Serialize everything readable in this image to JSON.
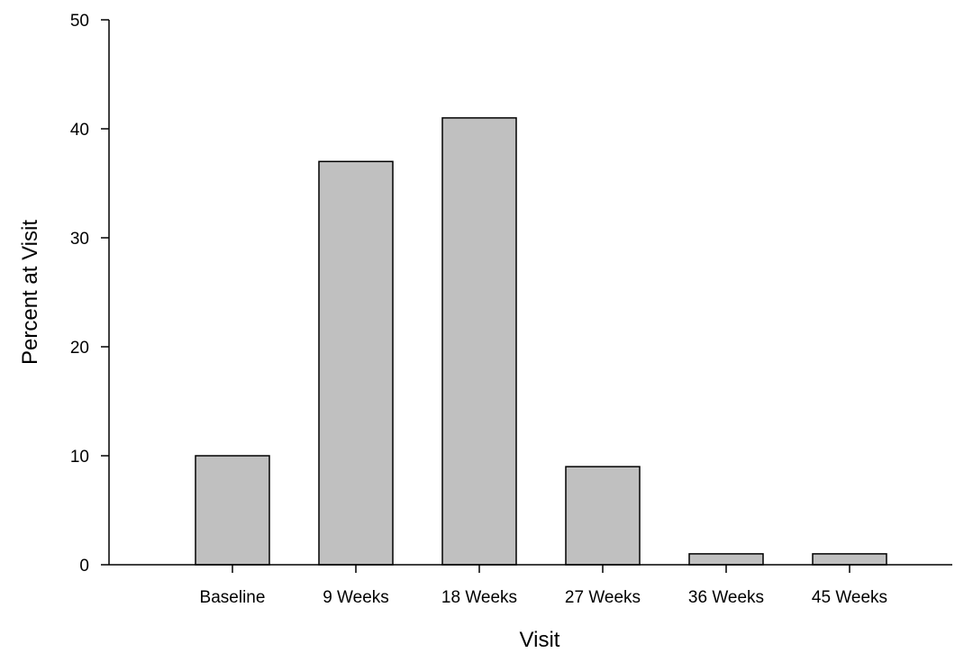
{
  "chart_data": {
    "type": "bar",
    "categories": [
      "Baseline",
      "9 Weeks",
      "18 Weeks",
      "27 Weeks",
      "36 Weeks",
      "45 Weeks"
    ],
    "values": [
      10,
      37,
      41,
      9,
      1,
      1
    ],
    "xlabel": "Visit",
    "ylabel": "Percent at Visit",
    "ylim": [
      0,
      50
    ],
    "yticks": [
      0,
      10,
      20,
      30,
      40,
      50
    ],
    "grid": false,
    "legend": "none",
    "bar_color": "#c0c0c0",
    "bar_edge_color": "#000000"
  }
}
